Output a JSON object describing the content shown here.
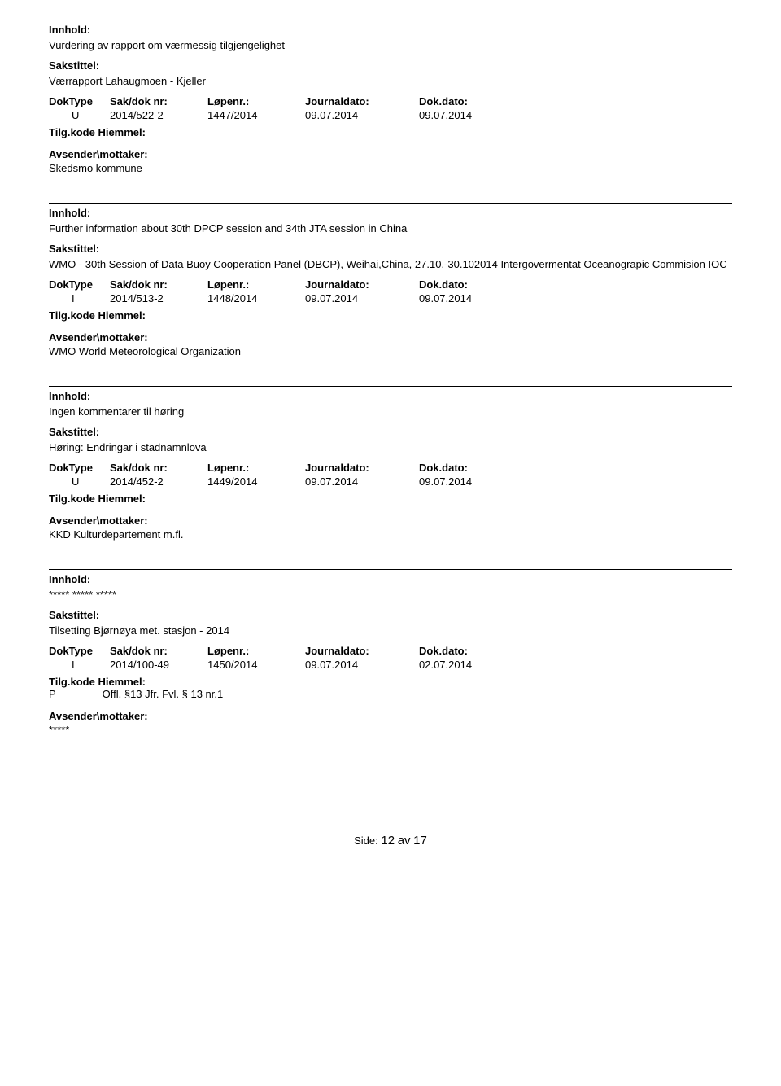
{
  "labels": {
    "innhold": "Innhold:",
    "sakstittel": "Sakstittel:",
    "doktype": "DokType",
    "saknr": "Sak/dok nr:",
    "lopenr": "Løpenr.:",
    "journaldato": "Journaldato:",
    "dokdato": "Dok.dato:",
    "tilgkode": "Tilg.kode",
    "hjemmel": "Hiemmel:",
    "avsender": "Avsender\\mottaker:"
  },
  "records": [
    {
      "innhold": "Vurdering av rapport om værmessig tilgjengelighet",
      "sakstittel": "Værrapport Lahaugmoen - Kjeller",
      "doktype": "U",
      "saknr": "2014/522-2",
      "lopenr": "1447/2014",
      "journaldato": "09.07.2014",
      "dokdato": "09.07.2014",
      "tilgkode": "",
      "hjemmel": "",
      "avsender": "Skedsmo kommune"
    },
    {
      "innhold": "Further information about 30th DPCP session and 34th JTA session in China",
      "sakstittel": "WMO - 30th Session of Data Buoy Cooperation Panel (DBCP), Weihai,China, 27.10.-30.102014 Intergovermentat Oceanograpic Commision IOC",
      "doktype": "I",
      "saknr": "2014/513-2",
      "lopenr": "1448/2014",
      "journaldato": "09.07.2014",
      "dokdato": "09.07.2014",
      "tilgkode": "",
      "hjemmel": "",
      "avsender": "WMO World Meteorological Organization"
    },
    {
      "innhold": "Ingen kommentarer til høring",
      "sakstittel": "Høring: Endringar i stadnamnlova",
      "doktype": "U",
      "saknr": "2014/452-2",
      "lopenr": "1449/2014",
      "journaldato": "09.07.2014",
      "dokdato": "09.07.2014",
      "tilgkode": "",
      "hjemmel": "",
      "avsender": "KKD Kulturdepartement m.fl."
    },
    {
      "innhold": "***** ***** *****",
      "sakstittel": "Tilsetting Bjørnøya met. stasjon - 2014",
      "doktype": "I",
      "saknr": "2014/100-49",
      "lopenr": "1450/2014",
      "journaldato": "09.07.2014",
      "dokdato": "02.07.2014",
      "tilgkode": "P",
      "hjemmel": "Offl. §13 Jfr. Fvl. § 13 nr.1",
      "avsender": "*****"
    }
  ],
  "footer": {
    "side_label": "Side:",
    "page_current": "12",
    "page_sep": "av",
    "page_total": "17"
  }
}
